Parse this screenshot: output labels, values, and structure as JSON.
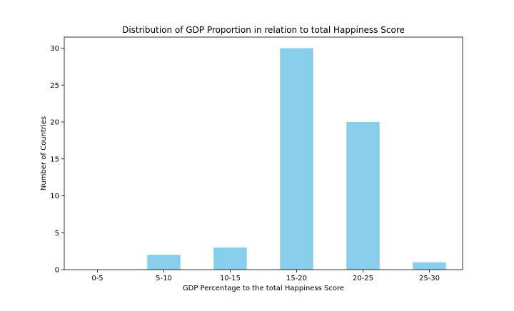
{
  "chart_data": {
    "type": "bar",
    "title": "Distribution of GDP Proportion in relation to total Happiness Score",
    "xlabel": "GDP Percentage to the total Happiness Score",
    "ylabel": "Number of Countries",
    "categories": [
      "0-5",
      "5-10",
      "10-15",
      "15-20",
      "20-25",
      "25-30"
    ],
    "values": [
      0,
      2,
      3,
      30,
      20,
      1
    ],
    "ylim": [
      0,
      31.5
    ],
    "yticks": [
      0,
      5,
      10,
      15,
      20,
      25,
      30
    ],
    "bar_color": "#87ceeb",
    "grid": false,
    "legend": "none"
  }
}
